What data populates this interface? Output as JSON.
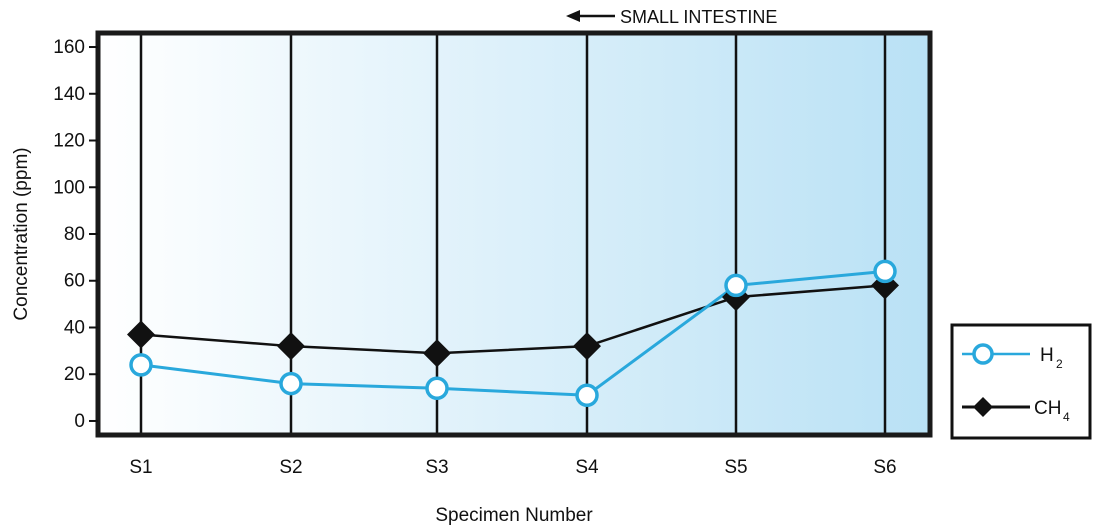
{
  "chart_data": {
    "type": "line",
    "xlabel": "Specimen Number",
    "ylabel": "Concentration (ppm)",
    "categories": [
      "S1",
      "S2",
      "S3",
      "S4",
      "S5",
      "S6"
    ],
    "y_ticks": [
      0,
      20,
      40,
      60,
      80,
      100,
      120,
      140,
      160
    ],
    "ylim": [
      -6,
      166
    ],
    "grid": "vertical lines at each specimen",
    "legend_position": "bottom-right, outside plot",
    "annotation": "SMALL INTESTINE",
    "annotation_arrow": "pointing left",
    "background_gradient": [
      "#ffffff",
      "#b9e1f5"
    ],
    "series": [
      {
        "name": "H",
        "subscript": "2",
        "marker": "open-circle",
        "color": "#29a8dc",
        "values": [
          24,
          16,
          14,
          11,
          58,
          64
        ]
      },
      {
        "name": "CH",
        "subscript": "4",
        "marker": "filled-diamond",
        "color": "#111111",
        "values": [
          37,
          32,
          29,
          32,
          53,
          58
        ]
      }
    ]
  }
}
